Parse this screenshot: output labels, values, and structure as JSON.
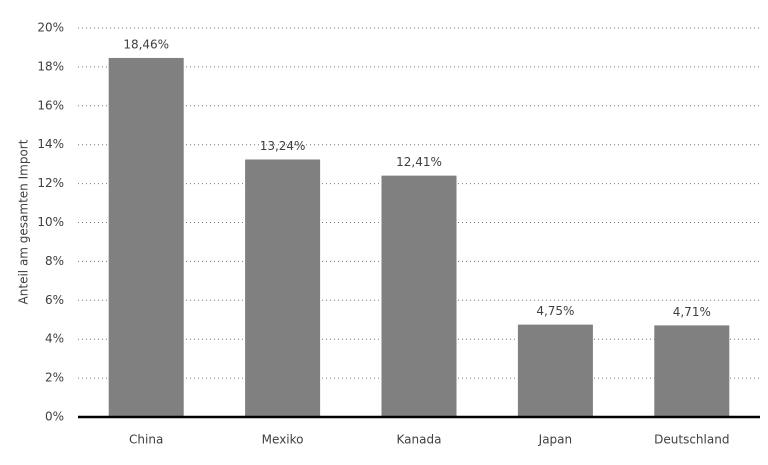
{
  "chart_data": {
    "type": "bar",
    "y_axis_label": "Anteil am gesamten Import",
    "categories": [
      "China",
      "Mexiko",
      "Kanada",
      "Japan",
      "Deutschland"
    ],
    "values": [
      18.46,
      13.24,
      12.41,
      4.75,
      4.71
    ],
    "value_labels": [
      "18,46%",
      "13,24%",
      "12,41%",
      "4,75%",
      "4,71%"
    ],
    "color": "#808080",
    "ylim": [
      0,
      20
    ],
    "yticks": [
      {
        "value": 0,
        "label": "0%"
      },
      {
        "value": 2,
        "label": "2%"
      },
      {
        "value": 4,
        "label": "4%"
      },
      {
        "value": 6,
        "label": "6%"
      },
      {
        "value": 8,
        "label": "8%"
      },
      {
        "value": 10,
        "label": "10%"
      },
      {
        "value": 12,
        "label": "12%"
      },
      {
        "value": 14,
        "label": "14%"
      },
      {
        "value": 16,
        "label": "16%"
      },
      {
        "value": 18,
        "label": "18%"
      },
      {
        "value": 20,
        "label": "20%"
      }
    ],
    "grid": true
  }
}
